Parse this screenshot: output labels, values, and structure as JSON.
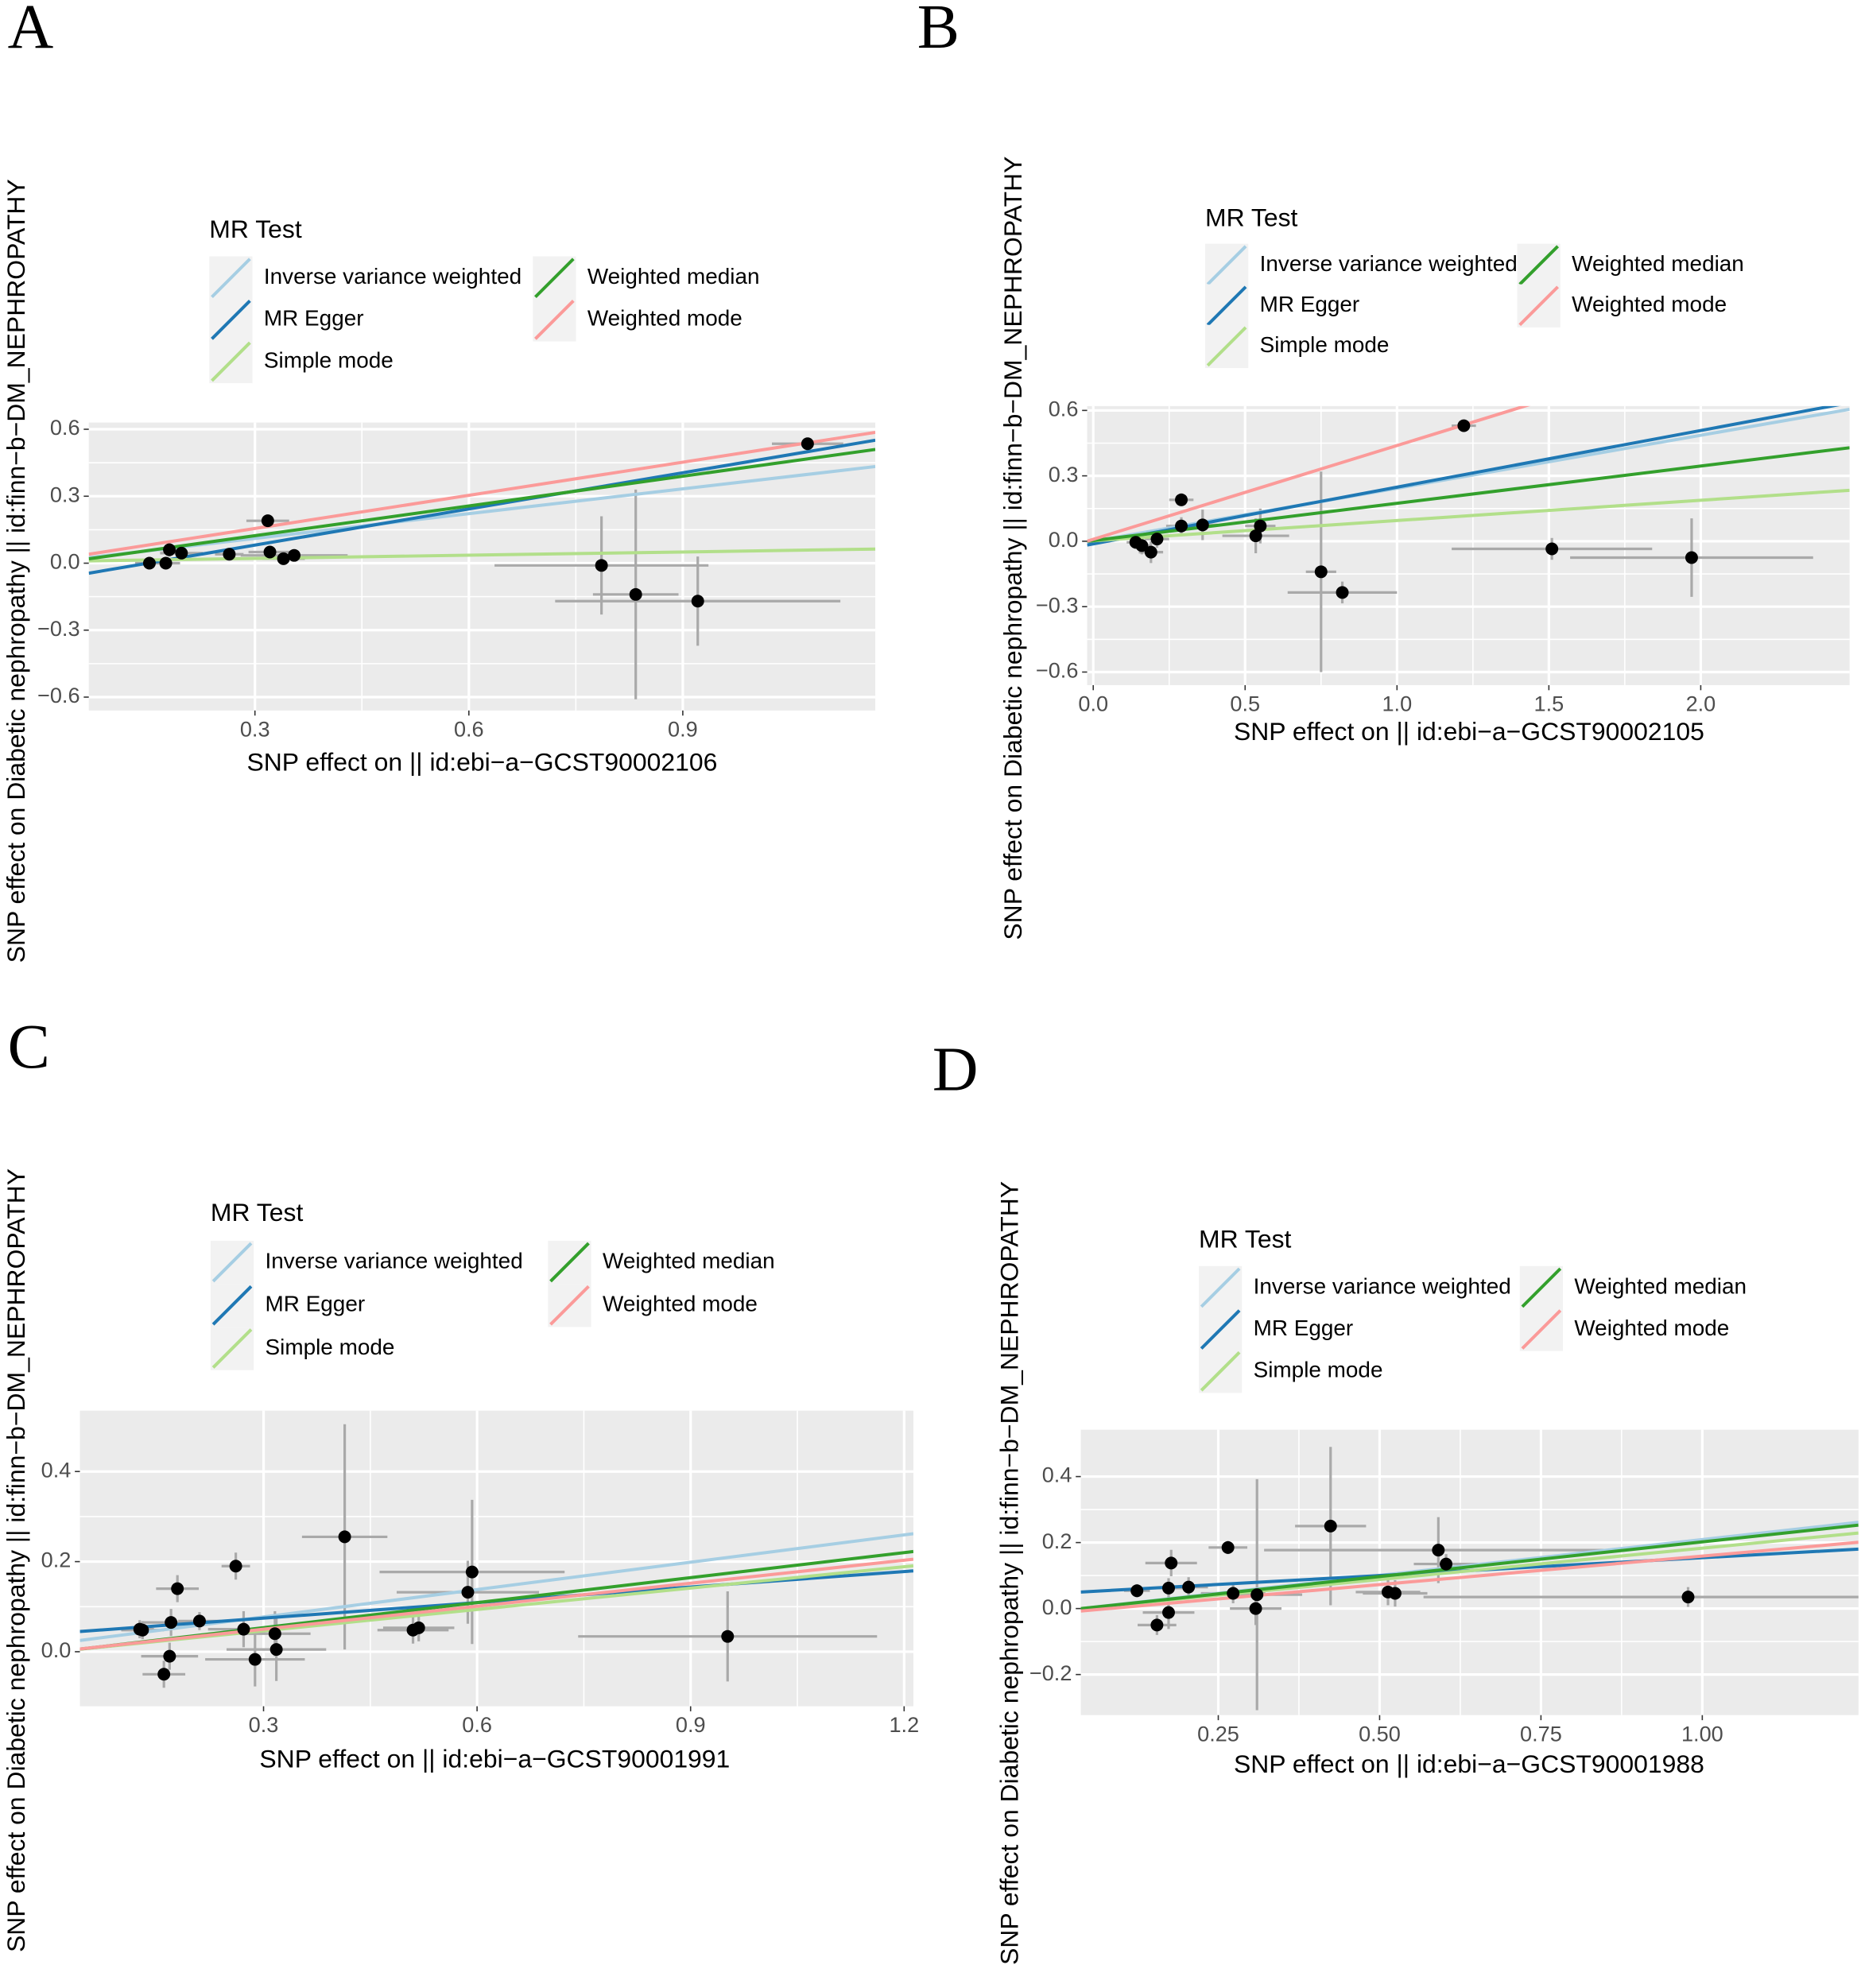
{
  "chart_data": [
    {
      "type": "scatter",
      "label": "A",
      "x_label": "SNP effect on  || id:ebi−a−GCST90002106",
      "y_label": "SNP effect on Diabetic nephropathy || id:finn−b−DM_NEPHROPATHY",
      "legend_title": "MR Test",
      "xlim": [
        0.067,
        1.17
      ],
      "ylim": [
        -0.66,
        0.63
      ],
      "xticks": [
        0.3,
        0.6,
        0.9
      ],
      "yticks": [
        {
          "value": -0.6,
          "label": "−0.6"
        },
        {
          "value": -0.3,
          "label": "−0.3"
        },
        {
          "value": 0,
          "label": "0.0"
        },
        0.3,
        0.6
      ],
      "x": [
        0.152,
        0.175,
        0.18,
        0.197,
        0.264,
        0.318,
        0.321,
        0.34,
        0.355,
        0.786,
        0.834,
        0.921,
        1.075
      ],
      "y": [
        0.0,
        0.0,
        0.06,
        0.045,
        0.04,
        0.19,
        0.05,
        0.02,
        0.035,
        -0.01,
        -0.14,
        -0.17,
        0.535
      ],
      "xerr": [
        0.02,
        0.02,
        0.02,
        0.03,
        0.02,
        0.03,
        0.03,
        0.03,
        0.075,
        0.15,
        0.06,
        0.2,
        0.05
      ],
      "yerr": [
        0.02,
        0.02,
        0.03,
        0.02,
        0.02,
        0.02,
        0.02,
        0.02,
        0.02,
        0.22,
        0.47,
        0.2,
        0.02
      ],
      "lines": [
        {
          "name": "Inverse variance weighted",
          "color": "#a6cee3",
          "slope": 0.37,
          "intercept": 0.0
        },
        {
          "name": "MR Egger",
          "color": "#1f78b4",
          "slope": 0.54,
          "intercept": -0.081
        },
        {
          "name": "Simple mode",
          "color": "#b2df8a",
          "slope": 0.048,
          "intercept": 0.007
        },
        {
          "name": "Weighted median",
          "color": "#33a02c",
          "slope": 0.444,
          "intercept": -0.01
        },
        {
          "name": "Weighted mode",
          "color": "#fb9a99",
          "slope": 0.495,
          "intercept": 0.007
        }
      ]
    },
    {
      "type": "scatter",
      "label": "B",
      "x_label": "SNP effect on  || id:ebi−a−GCST90002105",
      "y_label": "SNP effect on Diabetic nephropathy || id:finn−b−DM_NEPHROPATHY",
      "legend_title": "MR Test",
      "xlim": [
        -0.02,
        2.49
      ],
      "ylim": [
        -0.66,
        0.62
      ],
      "xticks": [
        {
          "value": 0,
          "label": "0.0"
        },
        0.5,
        {
          "value": 1,
          "label": "1.0"
        },
        1.5,
        {
          "value": 2,
          "label": "2.0"
        }
      ],
      "yticks": [
        {
          "value": -0.6,
          "label": "−0.6"
        },
        {
          "value": -0.3,
          "label": "−0.3"
        },
        {
          "value": 0,
          "label": "0.0"
        },
        0.3,
        0.6
      ],
      "x": [
        0.14,
        0.16,
        0.19,
        0.21,
        0.29,
        0.29,
        0.36,
        0.535,
        0.55,
        0.75,
        0.82,
        1.22,
        1.51,
        1.97
      ],
      "y": [
        -0.005,
        -0.02,
        -0.05,
        0.01,
        0.19,
        0.07,
        0.075,
        0.025,
        0.07,
        -0.14,
        -0.235,
        0.53,
        -0.035,
        -0.075
      ],
      "xerr": [
        0.03,
        0.03,
        0.04,
        0.04,
        0.04,
        0.05,
        0.05,
        0.11,
        0.05,
        0.05,
        0.18,
        0.04,
        0.33,
        0.4
      ],
      "yerr": [
        0.03,
        0.04,
        0.05,
        0.04,
        0.03,
        0.04,
        0.07,
        0.08,
        0.08,
        0.46,
        0.05,
        0.02,
        0.05,
        0.18
      ],
      "lines": [
        {
          "name": "Inverse variance weighted",
          "color": "#a6cee3",
          "slope": 0.243,
          "intercept": 0.0
        },
        {
          "name": "MR Egger",
          "color": "#1f78b4",
          "slope": 0.26,
          "intercept": -0.012
        },
        {
          "name": "Simple mode",
          "color": "#b2df8a",
          "slope": 0.093,
          "intercept": 0.002
        },
        {
          "name": "Weighted median",
          "color": "#33a02c",
          "slope": 0.171,
          "intercept": 0.003
        },
        {
          "name": "Weighted mode",
          "color": "#fb9a99",
          "slope": 0.43,
          "intercept": 0.009
        }
      ]
    },
    {
      "type": "scatter",
      "label": "C",
      "x_label": "SNP effect on  || id:ebi−a−GCST90001991",
      "y_label": "SNP effect on Diabetic nephropathy || id:finn−b−DM_NEPHROPATHY",
      "legend_title": "MR Test",
      "xlim": [
        0.042,
        1.213
      ],
      "ylim": [
        -0.121,
        0.535
      ],
      "xticks": [
        0.3,
        0.6,
        0.9,
        1.2
      ],
      "yticks": [
        {
          "value": 0,
          "label": "0.0"
        },
        0.2,
        0.4
      ],
      "x": [
        0.126,
        0.13,
        0.17,
        0.179,
        0.21,
        0.168,
        0.16,
        0.261,
        0.272,
        0.288,
        0.316,
        0.318,
        0.414,
        0.51,
        0.518,
        0.587,
        0.593,
        0.952
      ],
      "y": [
        0.05,
        0.048,
        0.065,
        0.14,
        0.068,
        -0.01,
        -0.05,
        0.19,
        0.05,
        -0.017,
        0.04,
        0.005,
        0.255,
        0.048,
        0.053,
        0.132,
        0.177,
        0.034
      ],
      "xerr": [
        0.02,
        0.03,
        0.04,
        0.03,
        0.03,
        0.04,
        0.03,
        0.02,
        0.05,
        0.07,
        0.05,
        0.07,
        0.06,
        0.05,
        0.05,
        0.1,
        0.13,
        0.21
      ],
      "yerr": [
        0.02,
        0.02,
        0.03,
        0.03,
        0.02,
        0.03,
        0.03,
        0.03,
        0.04,
        0.06,
        0.05,
        0.07,
        0.25,
        0.03,
        0.03,
        0.07,
        0.16,
        0.1
      ],
      "lines": [
        {
          "name": "Inverse variance weighted",
          "color": "#a6cee3",
          "slope": 0.2024,
          "intercept": 0.0165
        },
        {
          "name": "MR Egger",
          "color": "#1f78b4",
          "slope": 0.115,
          "intercept": 0.04
        },
        {
          "name": "Simple mode",
          "color": "#b2df8a",
          "slope": 0.158,
          "intercept": -0.001
        },
        {
          "name": "Weighted median",
          "color": "#33a02c",
          "slope": 0.185,
          "intercept": -0.002
        },
        {
          "name": "Weighted mode",
          "color": "#fb9a99",
          "slope": 0.17,
          "intercept": -0.001
        }
      ]
    },
    {
      "type": "scatter",
      "label": "D",
      "x_label": "SNP effect on  || id:ebi−a−GCST90001988",
      "y_label": "SNP effect on Diabetic nephropathy || id:finn−b−DM_NEPHROPATHY",
      "legend_title": "MR Test",
      "xlim": [
        0.037,
        1.242
      ],
      "ylim": [
        -0.323,
        0.542
      ],
      "xticks": [
        0.25,
        {
          "value": 0.5,
          "label": "0.50"
        },
        0.75,
        {
          "value": 1,
          "label": "1.00"
        }
      ],
      "yticks": [
        {
          "value": -0.2,
          "label": "−0.2"
        },
        {
          "value": 0,
          "label": "0.0"
        },
        0.2,
        0.4
      ],
      "x": [
        0.124,
        0.173,
        0.177,
        0.204,
        0.155,
        0.173,
        0.265,
        0.273,
        0.308,
        0.31,
        0.424,
        0.513,
        0.524,
        0.591,
        0.603,
        0.978
      ],
      "y": [
        0.054,
        0.062,
        0.138,
        0.065,
        -0.05,
        -0.012,
        0.185,
        0.046,
        0.0,
        0.042,
        0.25,
        0.05,
        0.046,
        0.177,
        0.135,
        0.035
      ],
      "xerr": [
        0.02,
        0.03,
        0.04,
        0.03,
        0.03,
        0.04,
        0.03,
        0.05,
        0.04,
        0.07,
        0.055,
        0.05,
        0.05,
        0.27,
        0.05,
        0.41
      ],
      "yerr": [
        0.02,
        0.03,
        0.04,
        0.03,
        0.03,
        0.05,
        0.02,
        0.03,
        0.05,
        0.35,
        0.24,
        0.04,
        0.04,
        0.1,
        0.03,
        0.03
      ],
      "lines": [
        {
          "name": "Inverse variance weighted",
          "color": "#a6cee3",
          "slope": 0.217,
          "intercept": -0.008
        },
        {
          "name": "MR Egger",
          "color": "#1f78b4",
          "slope": 0.108,
          "intercept": 0.046
        },
        {
          "name": "Simple mode",
          "color": "#b2df8a",
          "slope": 0.19,
          "intercept": -0.007
        },
        {
          "name": "Weighted median",
          "color": "#33a02c",
          "slope": 0.21,
          "intercept": -0.008
        },
        {
          "name": "Weighted mode",
          "color": "#fb9a99",
          "slope": 0.173,
          "intercept": -0.014
        }
      ]
    }
  ]
}
